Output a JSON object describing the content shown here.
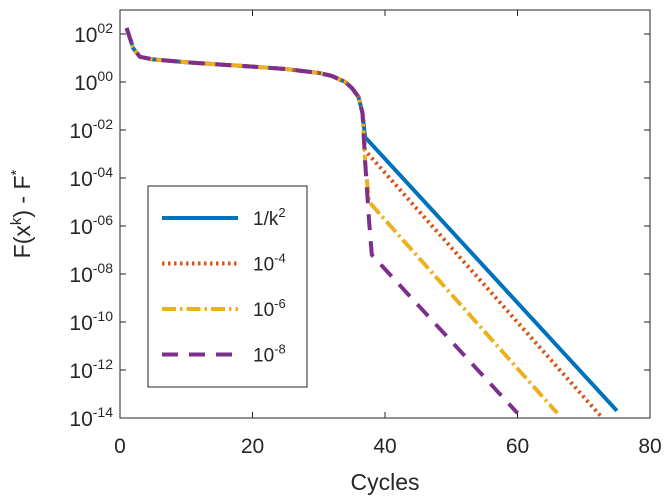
{
  "chart_data": {
    "type": "line",
    "title": "",
    "xlabel": "Cycles",
    "ylabel": {
      "base": "F(x",
      "sup1": "k",
      "mid": ") - F",
      "sup2": "*"
    },
    "xlim": [
      0,
      80
    ],
    "ylim_log10": [
      -14,
      3
    ],
    "yscale": "log",
    "x_ticks": [
      {
        "value": 0,
        "label": "0"
      },
      {
        "value": 20,
        "label": "20"
      },
      {
        "value": 40,
        "label": "40"
      },
      {
        "value": 60,
        "label": "60"
      },
      {
        "value": 80,
        "label": "80"
      }
    ],
    "y_ticks": [
      {
        "exp": 2,
        "base": "10",
        "sup": "02"
      },
      {
        "exp": 0,
        "base": "10",
        "sup": "00"
      },
      {
        "exp": -2,
        "base": "10",
        "sup": "-02"
      },
      {
        "exp": -4,
        "base": "10",
        "sup": "-04"
      },
      {
        "exp": -6,
        "base": "10",
        "sup": "-06"
      },
      {
        "exp": -8,
        "base": "10",
        "sup": "-08"
      },
      {
        "exp": -10,
        "base": "10",
        "sup": "-10"
      },
      {
        "exp": -12,
        "base": "10",
        "sup": "-12"
      },
      {
        "exp": -14,
        "base": "10",
        "sup": "-14"
      }
    ],
    "legend_position": "lower-left",
    "series": [
      {
        "name": "1/k^2",
        "legend_base": "1/k",
        "legend_sup": "2",
        "color": "#0072BD",
        "dash": "solid",
        "x": [
          1,
          2,
          3,
          5,
          10,
          15,
          20,
          25,
          30,
          32,
          34,
          35,
          36,
          36.6,
          37,
          75
        ],
        "log10y": [
          2.25,
          1.4,
          1.05,
          0.94,
          0.82,
          0.73,
          0.64,
          0.54,
          0.38,
          0.25,
          0.0,
          -0.25,
          -0.62,
          -1.3,
          -2.3,
          -13.7
        ]
      },
      {
        "name": "10^-4",
        "legend_base": "10",
        "legend_sup": "-4",
        "color": "#D95319",
        "dash": "dotted",
        "x": [
          1,
          2,
          3,
          5,
          10,
          15,
          20,
          25,
          30,
          32,
          34,
          35,
          36,
          36.6,
          37,
          72.5
        ],
        "log10y": [
          2.25,
          1.4,
          1.05,
          0.94,
          0.82,
          0.73,
          0.64,
          0.54,
          0.38,
          0.25,
          0.0,
          -0.25,
          -0.62,
          -1.3,
          -2.85,
          -13.9
        ]
      },
      {
        "name": "10^-6",
        "legend_base": "10",
        "legend_sup": "-6",
        "color": "#EDB120",
        "dash": "dashdot",
        "x": [
          1,
          2,
          3,
          5,
          10,
          15,
          20,
          25,
          30,
          32,
          34,
          35,
          36,
          36.6,
          37,
          37.6,
          66
        ],
        "log10y": [
          2.25,
          1.4,
          1.05,
          0.94,
          0.82,
          0.73,
          0.64,
          0.54,
          0.38,
          0.25,
          0.0,
          -0.25,
          -0.62,
          -1.3,
          -3.3,
          -5.0,
          -13.8
        ]
      },
      {
        "name": "10^-8",
        "legend_base": "10",
        "legend_sup": "-8",
        "color": "#7E2F8E",
        "dash": "dashed",
        "x": [
          1,
          2,
          3,
          5,
          10,
          15,
          20,
          25,
          30,
          32,
          34,
          35,
          36,
          36.6,
          37,
          37.6,
          38,
          60
        ],
        "log10y": [
          2.25,
          1.4,
          1.05,
          0.94,
          0.82,
          0.73,
          0.64,
          0.54,
          0.38,
          0.25,
          0.0,
          -0.25,
          -0.62,
          -1.3,
          -3.3,
          -5.8,
          -7.2,
          -13.8
        ]
      }
    ]
  }
}
